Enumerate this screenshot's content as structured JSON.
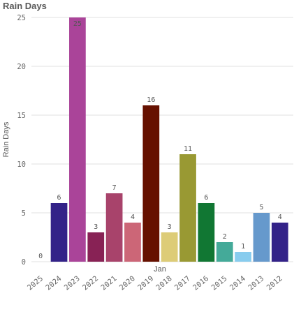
{
  "chart_data": {
    "type": "bar",
    "title": "Rain Days",
    "xlabel": "Jan",
    "ylabel": "Rain Days",
    "ylim": [
      0,
      25
    ],
    "yticks": [
      0,
      5,
      10,
      15,
      20,
      25
    ],
    "grid": true,
    "categories": [
      "2025",
      "2024",
      "2023",
      "2022",
      "2021",
      "2020",
      "2019",
      "2018",
      "2017",
      "2016",
      "2015",
      "2014",
      "2013",
      "2012"
    ],
    "values": [
      0,
      6,
      25,
      3,
      7,
      4,
      16,
      3,
      11,
      6,
      2,
      1,
      5,
      4
    ],
    "colors": [
      "#b0b0b0",
      "#332288",
      "#aa4499",
      "#882255",
      "#a8436b",
      "#cc6677",
      "#661100",
      "#ddcc77",
      "#999933",
      "#117733",
      "#44aa99",
      "#88ccee",
      "#6699cc",
      "#332288"
    ]
  }
}
